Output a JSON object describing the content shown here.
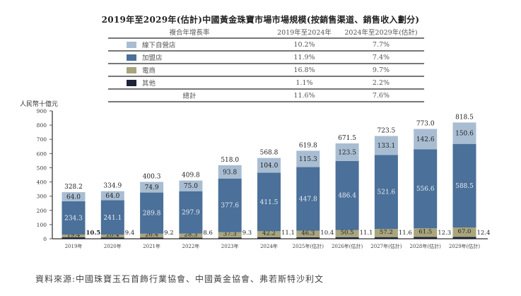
{
  "title": "2019年至2029年(估計)中國黃金珠寶市場市場規模(按銷售渠道、銷售收入劃分)",
  "cagr_table": {
    "header": [
      "複合年增長率",
      "2019年至2024年",
      "2024年至2029年(估計)"
    ],
    "rows": [
      {
        "label": "線下自營店",
        "color": "#a9bdd2",
        "v1": "10.2%",
        "v2": "7.7%"
      },
      {
        "label": "加盟店",
        "color": "#4b7099",
        "v1": "11.9%",
        "v2": "7.4%"
      },
      {
        "label": "電商",
        "color": "#a9a57d",
        "v1": "16.8%",
        "v2": "9.7%"
      },
      {
        "label": "其他",
        "color": "#1c2238",
        "v1": "1.1%",
        "v2": "2.2%"
      }
    ],
    "total": {
      "label": "總計",
      "v1": "11.6%",
      "v2": "7.6%"
    }
  },
  "chart_data": {
    "type": "bar",
    "stacked": true,
    "ylabel": "人民幣十億元",
    "ylim": [
      0,
      900
    ],
    "yticks": [
      "0",
      "100",
      "200",
      "300",
      "400",
      "500",
      "600",
      "700",
      "800",
      "900"
    ],
    "categories": [
      "2019年",
      "2020年",
      "2021年",
      "2022年",
      "2023年",
      "2024年",
      "2025年(估計)",
      "2026年(估計)",
      "2027年(估計)",
      "2028年(估計)",
      "2029年(估計)"
    ],
    "series": [
      {
        "name": "其他",
        "color": "#1c2238",
        "values": [
          10.5,
          9.4,
          9.2,
          8.6,
          9.3,
          11.1,
          10.4,
          11.1,
          11.6,
          12.3,
          12.4
        ],
        "labels": [
          "10.5",
          "9.4",
          "9.2",
          "8.6",
          "9.3",
          "11.1",
          "10.4",
          "11.1",
          "11.6",
          "12.3",
          "12.4"
        ]
      },
      {
        "name": "電商",
        "color": "#a9a57d",
        "values": [
          19.4,
          20.4,
          26.4,
          28.3,
          37.3,
          42.2,
          46.3,
          50.5,
          57.2,
          61.5,
          67.0
        ],
        "labels": [
          "19.4",
          "20.4",
          "26.4",
          "28.3",
          "37.3",
          "42.2",
          "46.3",
          "50.5",
          "57.2",
          "61.5",
          "67.0"
        ]
      },
      {
        "name": "加盟店",
        "color": "#4b7099",
        "values": [
          234.3,
          241.1,
          289.8,
          297.9,
          377.6,
          411.5,
          447.8,
          486.4,
          521.6,
          556.6,
          588.5
        ],
        "labels": [
          "234.3",
          "241.1",
          "289.8",
          "297.9",
          "377.6",
          "411.5",
          "447.8",
          "486.4",
          "521.6",
          "556.6",
          "588.5"
        ]
      },
      {
        "name": "線下自營店",
        "color": "#a9bdd2",
        "values": [
          64.0,
          64.0,
          74.9,
          75.0,
          93.8,
          104.0,
          115.3,
          123.5,
          133.1,
          142.6,
          150.6
        ],
        "labels": [
          "64.0",
          "64.0",
          "74.9",
          "75.0",
          "93.8",
          "104.0",
          "115.3",
          "123.5",
          "133.1",
          "142.6",
          "150.6"
        ]
      }
    ],
    "totals": [
      "328.2",
      "334.9",
      "400.3",
      "409.8",
      "518.0",
      "568.8",
      "619.8",
      "671.5",
      "723.5",
      "773.0",
      "818.5"
    ],
    "totals_values": [
      328.2,
      334.9,
      400.3,
      409.8,
      518.0,
      568.8,
      619.8,
      671.5,
      723.5,
      773.0,
      818.5
    ]
  },
  "source": "資料來源:中國珠寶玉石首飾行業協會、中國黃金協會、弗若斯特沙利文"
}
